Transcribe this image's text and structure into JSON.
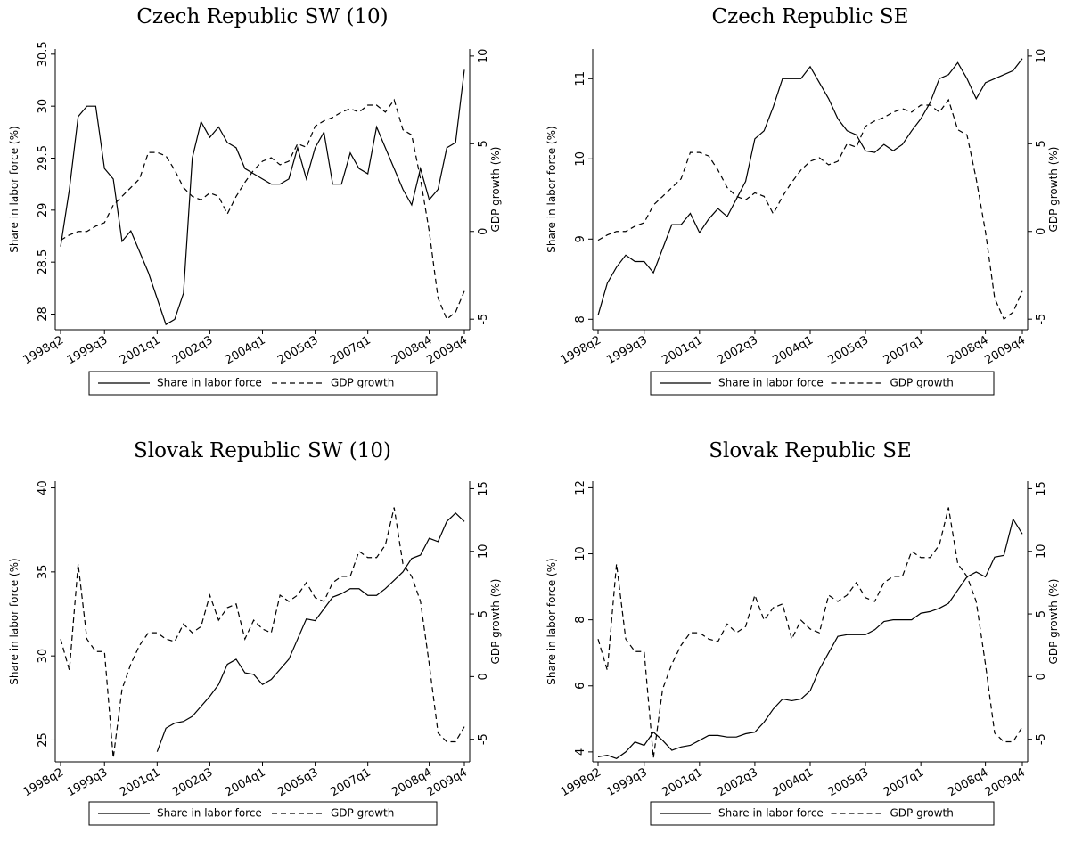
{
  "chart_data": [
    {
      "type": "line",
      "title": "Czech Republic SW (10)",
      "ylabel": "Share in labor force (%)",
      "y2label": "GDP growth (%)",
      "categories": [
        "1998q2",
        null,
        null,
        null,
        null,
        "1999q3",
        null,
        null,
        null,
        null,
        null,
        "2001q1",
        null,
        null,
        null,
        null,
        null,
        "2002q3",
        null,
        null,
        null,
        null,
        null,
        "2004q1",
        null,
        null,
        null,
        null,
        null,
        "2005q3",
        null,
        null,
        null,
        null,
        null,
        "2007q1",
        null,
        null,
        null,
        null,
        null,
        null,
        "2008q4",
        null,
        null,
        null,
        "2009q4"
      ],
      "ylim": [
        27.85,
        30.55
      ],
      "yticks": [
        28,
        28.5,
        29,
        29.5,
        30,
        30.5
      ],
      "y2lim": [
        -5.6,
        10.4
      ],
      "y2ticks": [
        -5,
        0,
        5,
        10
      ],
      "series": [
        {
          "name": "Share in labor force",
          "color": "#000000",
          "dash": false,
          "values": [
            28.65,
            29.2,
            29.9,
            30.0,
            30.0,
            29.4,
            29.3,
            28.7,
            28.8,
            28.6,
            28.4,
            28.15,
            27.9,
            27.95,
            28.2,
            29.5,
            29.85,
            29.7,
            29.8,
            29.65,
            29.6,
            29.4,
            29.35,
            29.3,
            29.25,
            29.25,
            29.3,
            29.6,
            29.3,
            29.6,
            29.75,
            29.25,
            29.25,
            29.55,
            29.4,
            29.35,
            29.8,
            29.6,
            29.4,
            29.2,
            29.05,
            29.4,
            29.1,
            29.2,
            29.6,
            29.65,
            30.35
          ]
        },
        {
          "name": "GDP growth",
          "color": "#000000",
          "dash": true,
          "axis": "y2",
          "values": [
            -0.5,
            -0.2,
            0,
            0,
            0.3,
            0.5,
            1.5,
            2,
            2.5,
            3,
            4.5,
            4.5,
            4.3,
            3.5,
            2.5,
            2,
            1.8,
            2.2,
            2,
            1,
            2,
            2.8,
            3.5,
            4,
            4.2,
            3.8,
            4,
            5,
            4.8,
            6,
            6.3,
            6.5,
            6.8,
            7,
            6.8,
            7.2,
            7.2,
            6.8,
            7.5,
            5.8,
            5.5,
            3,
            0,
            -3.8,
            -5,
            -4.6,
            -3.4
          ]
        }
      ]
    },
    {
      "type": "line",
      "title": "Czech Republic SE",
      "ylabel": "Share in labor force (%)",
      "y2label": "GDP growth (%)",
      "categories": [
        "1998q2",
        null,
        null,
        null,
        null,
        "1999q3",
        null,
        null,
        null,
        null,
        null,
        "2001q1",
        null,
        null,
        null,
        null,
        null,
        "2002q3",
        null,
        null,
        null,
        null,
        null,
        "2004q1",
        null,
        null,
        null,
        null,
        null,
        "2005q3",
        null,
        null,
        null,
        null,
        null,
        "2007q1",
        null,
        null,
        null,
        null,
        null,
        null,
        "2008q4",
        null,
        null,
        null,
        "2009q4"
      ],
      "ylim": [
        7.87,
        11.37
      ],
      "yticks": [
        8,
        9,
        10,
        11
      ],
      "y2lim": [
        -5.6,
        10.4
      ],
      "y2ticks": [
        -5,
        0,
        5,
        10
      ],
      "series": [
        {
          "name": "Share in labor force",
          "color": "#000000",
          "dash": false,
          "values": [
            8.05,
            8.45,
            8.65,
            8.8,
            8.72,
            8.72,
            8.58,
            8.88,
            9.18,
            9.18,
            9.32,
            9.08,
            9.25,
            9.38,
            9.28,
            9.5,
            9.72,
            10.25,
            10.35,
            10.65,
            11.0,
            11.0,
            11.0,
            11.15,
            10.95,
            10.75,
            10.5,
            10.35,
            10.3,
            10.1,
            10.08,
            10.18,
            10.1,
            10.18,
            10.35,
            10.5,
            10.7,
            11.0,
            11.05,
            11.2,
            11.0,
            10.75,
            10.95,
            11.0,
            11.05,
            11.1,
            11.25
          ]
        },
        {
          "name": "GDP growth",
          "color": "#000000",
          "dash": true,
          "axis": "y2",
          "values": [
            -0.5,
            -0.2,
            0,
            0,
            0.3,
            0.5,
            1.5,
            2,
            2.5,
            3,
            4.5,
            4.5,
            4.3,
            3.5,
            2.5,
            2,
            1.8,
            2.2,
            2,
            1,
            2,
            2.8,
            3.5,
            4,
            4.2,
            3.8,
            4,
            5,
            4.8,
            6,
            6.3,
            6.5,
            6.8,
            7,
            6.8,
            7.2,
            7.2,
            6.8,
            7.5,
            5.8,
            5.5,
            3,
            0,
            -3.8,
            -5,
            -4.6,
            -3.4
          ]
        }
      ]
    },
    {
      "type": "line",
      "title": "Slovak Republic SW (10)",
      "ylabel": "Share in labor force (%)",
      "y2label": "GDP growth (%)",
      "categories": [
        "1998q2",
        null,
        null,
        null,
        null,
        "1999q3",
        null,
        null,
        null,
        null,
        null,
        "2001q1",
        null,
        null,
        null,
        null,
        null,
        "2002q3",
        null,
        null,
        null,
        null,
        null,
        "2004q1",
        null,
        null,
        null,
        null,
        null,
        "2005q3",
        null,
        null,
        null,
        null,
        null,
        "2007q1",
        null,
        null,
        null,
        null,
        null,
        null,
        "2008q4",
        null,
        null,
        null,
        "2009q4"
      ],
      "ylim": [
        23.7,
        40.4
      ],
      "yticks": [
        25,
        30,
        35,
        40
      ],
      "y2lim": [
        -6.8,
        15.6
      ],
      "y2ticks": [
        -5,
        0,
        5,
        10,
        15
      ],
      "series": [
        {
          "name": "Share in labor force",
          "color": "#000000",
          "dash": false,
          "values": [
            null,
            null,
            null,
            null,
            null,
            null,
            null,
            null,
            null,
            null,
            null,
            24.3,
            25.7,
            26.0,
            26.1,
            26.4,
            27.0,
            27.6,
            28.3,
            29.5,
            29.8,
            29.0,
            28.9,
            28.3,
            28.6,
            29.2,
            29.8,
            31.0,
            32.2,
            32.1,
            32.8,
            33.5,
            33.7,
            34.0,
            34.0,
            33.6,
            33.6,
            34.0,
            34.5,
            35.0,
            35.8,
            36.0,
            37.0,
            36.8,
            38.0,
            38.5,
            38.0
          ]
        },
        {
          "name": "GDP growth",
          "color": "#000000",
          "dash": true,
          "axis": "y2",
          "values": [
            3,
            0.5,
            9,
            3,
            2,
            2,
            -6.5,
            -1,
            1,
            2.5,
            3.5,
            3.5,
            3,
            2.8,
            4.2,
            3.5,
            4,
            6.5,
            4.5,
            5.5,
            5.8,
            3,
            4.5,
            3.8,
            3.5,
            6.5,
            6,
            6.5,
            7.5,
            6.3,
            6,
            7.5,
            8,
            8,
            10,
            9.5,
            9.5,
            10.5,
            13.5,
            9,
            8,
            6,
            1,
            -4.5,
            -5.2,
            -5.2,
            -4
          ]
        }
      ]
    },
    {
      "type": "line",
      "title": "Slovak Republic SE",
      "ylabel": "Share in labor force (%)",
      "y2label": "GDP growth (%)",
      "categories": [
        "1998q2",
        null,
        null,
        null,
        null,
        "1999q3",
        null,
        null,
        null,
        null,
        null,
        "2001q1",
        null,
        null,
        null,
        null,
        null,
        "2002q3",
        null,
        null,
        null,
        null,
        null,
        "2004q1",
        null,
        null,
        null,
        null,
        null,
        "2005q3",
        null,
        null,
        null,
        null,
        null,
        "2007q1",
        null,
        null,
        null,
        null,
        null,
        null,
        "2008q4",
        null,
        null,
        null,
        "2009q4"
      ],
      "ylim": [
        3.7,
        12.2
      ],
      "yticks": [
        4,
        6,
        8,
        10,
        12
      ],
      "y2lim": [
        -6.8,
        15.6
      ],
      "y2ticks": [
        -5,
        0,
        5,
        10,
        15
      ],
      "series": [
        {
          "name": "Share in labor force",
          "color": "#000000",
          "dash": false,
          "values": [
            3.85,
            3.9,
            3.8,
            4.0,
            4.3,
            4.2,
            4.6,
            4.35,
            4.05,
            4.15,
            4.2,
            4.35,
            4.5,
            4.5,
            4.45,
            4.45,
            4.55,
            4.6,
            4.9,
            5.3,
            5.6,
            5.55,
            5.6,
            5.85,
            6.5,
            7.0,
            7.5,
            7.55,
            7.55,
            7.55,
            7.7,
            7.95,
            8.0,
            8.0,
            8.0,
            8.2,
            8.25,
            8.35,
            8.5,
            8.9,
            9.3,
            9.45,
            9.3,
            9.9,
            9.95,
            11.05,
            10.6
          ]
        },
        {
          "name": "GDP growth",
          "color": "#000000",
          "dash": true,
          "axis": "y2",
          "values": [
            3,
            0.5,
            9,
            3,
            2,
            2,
            -6.5,
            -1,
            1,
            2.5,
            3.5,
            3.5,
            3,
            2.8,
            4.2,
            3.5,
            4,
            6.5,
            4.5,
            5.5,
            5.8,
            3,
            4.5,
            3.8,
            3.5,
            6.5,
            6,
            6.5,
            7.5,
            6.3,
            6,
            7.5,
            8,
            8,
            10,
            9.5,
            9.5,
            10.5,
            13.5,
            9,
            8,
            6,
            1,
            -4.5,
            -5.2,
            -5.2,
            -4
          ]
        }
      ]
    }
  ]
}
